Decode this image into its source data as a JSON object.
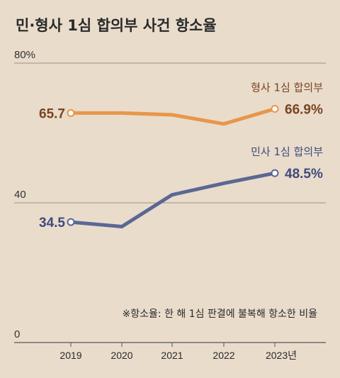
{
  "chart_data": {
    "type": "line",
    "title": "민·형사 1심 합의부 사건 항소율",
    "categories": [
      "2019",
      "2020",
      "2021",
      "2022",
      "2023년"
    ],
    "ylim": [
      0,
      80
    ],
    "yticks": [
      "80%",
      "40",
      "0"
    ],
    "ytick_values": [
      80,
      40,
      0
    ],
    "series": [
      {
        "name": "형사 1심 합의부",
        "values": [
          65.7,
          65.7,
          65.2,
          62.6,
          66.9
        ],
        "start_label": "65.7",
        "end_label": "66.9%",
        "color": "#e8964a",
        "label_color": "#7a4422"
      },
      {
        "name": "민사 1심 합의부",
        "values": [
          34.5,
          33.2,
          42.3,
          45.6,
          48.5
        ],
        "start_label": "34.5",
        "end_label": "48.5%",
        "color": "#5b6794",
        "label_color": "#3f4a7e"
      }
    ],
    "note": "※항소율: 한 해 1심 판결에 불복해 항소한 비율",
    "grid": true
  }
}
